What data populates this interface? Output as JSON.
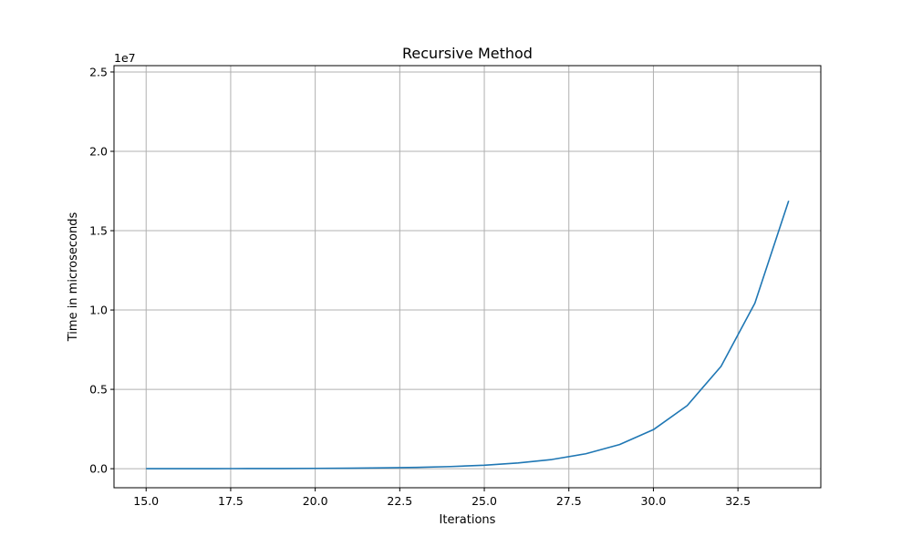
{
  "chart_data": {
    "type": "line",
    "title": "Recursive Method",
    "xlabel": "Iterations",
    "ylabel": "Time in microseconds",
    "y_offset_label": "1e7",
    "y_scale": 10000000,
    "xlim": [
      14.05,
      34.95
    ],
    "ylim": [
      -1200000,
      25400000
    ],
    "x_ticks": [
      15.0,
      17.5,
      20.0,
      22.5,
      25.0,
      27.5,
      30.0,
      32.5
    ],
    "x_tick_labels": [
      "15.0",
      "17.5",
      "20.0",
      "22.5",
      "25.0",
      "27.5",
      "30.0",
      "32.5"
    ],
    "y_ticks": [
      0,
      5000000,
      10000000,
      15000000,
      20000000,
      25000000
    ],
    "y_tick_labels": [
      "0.0",
      "0.5",
      "1.0",
      "1.5",
      "2.0",
      "2.5"
    ],
    "grid": true,
    "line_color": "#1f77b4",
    "series": [
      {
        "x": [
          15,
          16,
          17,
          18,
          19,
          20,
          21,
          22,
          23,
          24,
          25,
          26,
          27,
          28,
          29,
          30,
          31,
          32,
          33,
          34
        ],
        "values": [
          1500,
          2800,
          4500,
          7500,
          12000,
          20000,
          32000,
          52000,
          84000,
          135000,
          220000,
          360000,
          580000,
          940000,
          1520000,
          2460000,
          3980000,
          6450000,
          10430000,
          16880000
        ]
      }
    ]
  }
}
